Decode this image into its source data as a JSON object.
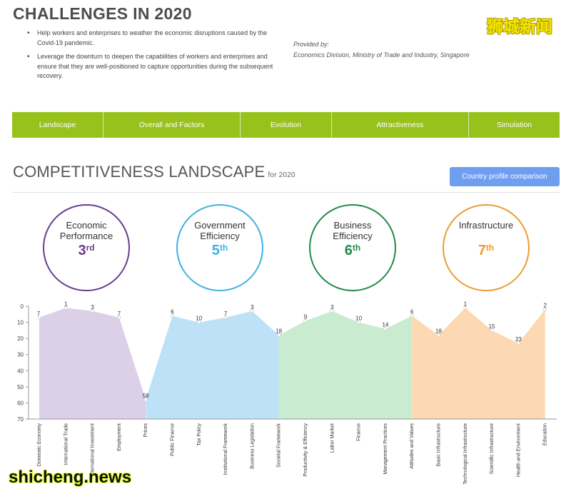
{
  "header": {
    "title": "CHALLENGES IN 2020",
    "watermark": "狮城新闻",
    "bullets": [
      "Help workers and enterprises to weather the economic disruptions caused by the Covid-19 pandemic.",
      "Leverage the downturn to deepen the capabilities of workers and enterprises and ensure that they are well-positioned to capture opportunities during the subsequent recovery."
    ],
    "provided_label": "Provided by:",
    "provided_by": "Economics Division, Ministry of Trade and Industry, Singapore"
  },
  "nav": {
    "tabs": [
      "Landscape",
      "Overall and Factors",
      "Evolution",
      "Attractiveness",
      "Simulation"
    ]
  },
  "section": {
    "title": "COMPETITIVENESS LANDSCAPE",
    "subtitle": "for 2020",
    "button_label": "Country profile comparison"
  },
  "factors": [
    {
      "name": "Economic Performance",
      "rank": "3",
      "suffix": "rd",
      "color": "#6b3c8c"
    },
    {
      "name": "Government Efficiency",
      "rank": "5",
      "suffix": "th",
      "color": "#3fb2e0"
    },
    {
      "name": "Business Efficiency",
      "rank": "6",
      "suffix": "th",
      "color": "#1f8a4c"
    },
    {
      "name": "Infrastructure",
      "rank": "7",
      "suffix": "th",
      "color": "#ef9a36"
    }
  ],
  "chart_data": {
    "type": "area",
    "y_inverted": true,
    "ylim": [
      0,
      70
    ],
    "yticks": [
      0,
      10,
      20,
      30,
      40,
      50,
      60,
      70
    ],
    "categories": [
      "Domestic Economy",
      "International Trade",
      "International Investment",
      "Employment",
      "Prices",
      "Public Finance",
      "Tax Policy",
      "Institutional Framework",
      "Business Legislation",
      "Societal Framework",
      "Productivity & Efficiency",
      "Labor Market",
      "Finance",
      "Management Practices",
      "Attitudes and Values",
      "Basic Infrastructure",
      "Technological Infrastructure",
      "Scientific Infrastructure",
      "Health and Environment",
      "Education"
    ],
    "values": [
      7,
      1,
      3,
      7,
      58,
      6,
      10,
      7,
      3,
      18,
      9,
      3,
      10,
      14,
      6,
      18,
      1,
      15,
      23,
      2
    ],
    "groups": [
      {
        "factor": "Economic Performance",
        "start": 0,
        "end": 4,
        "fill": "#dcd0e8"
      },
      {
        "factor": "Government Efficiency",
        "start": 4,
        "end": 9,
        "fill": "#bde2f8"
      },
      {
        "factor": "Business Efficiency",
        "start": 9,
        "end": 14,
        "fill": "#c9ebcf"
      },
      {
        "factor": "Infrastructure",
        "start": 14,
        "end": 19,
        "fill": "#fcd9b3"
      }
    ],
    "grid": false,
    "watermark": "shicheng.news"
  }
}
